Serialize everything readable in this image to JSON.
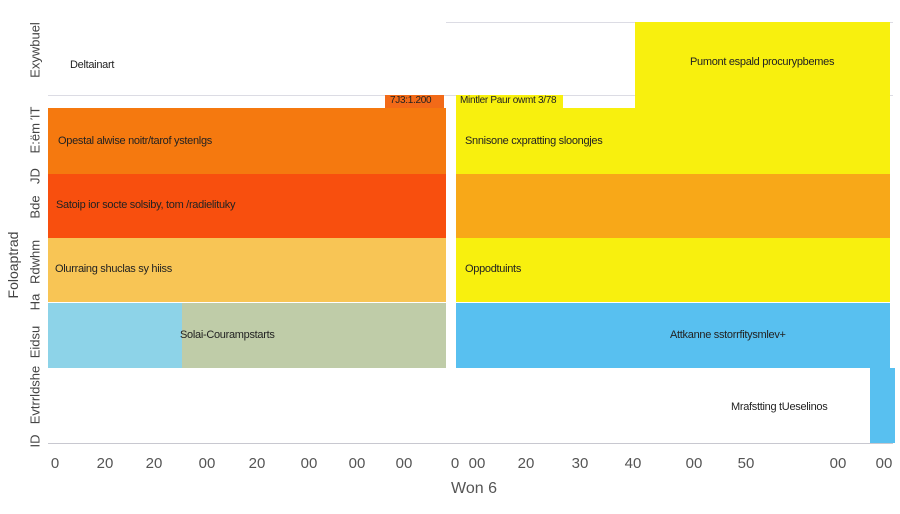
{
  "chart_data": {
    "type": "heatmap",
    "title": "",
    "xlabel": "Won 6",
    "ylabel": "Foloaptrad",
    "x_tick_labels": [
      "0",
      "20",
      "20",
      "00",
      "20",
      "00",
      "00",
      "00",
      "0",
      "00",
      "20",
      "30",
      "40",
      "00",
      "50",
      "00",
      "00"
    ],
    "y_tick_labels": [
      "Exywbuel",
      "E:ëm ΊΤ",
      "JD",
      "Bde",
      "Rdwhm",
      "Ha",
      "Eidsu",
      "Evtrrldshe",
      "ID"
    ],
    "cells": [
      {
        "label": "Deltainart",
        "color": "#ffffff"
      },
      {
        "label": "Pumont espald procurypbemes",
        "color": "#f8f00e"
      },
      {
        "label": "7J3:1.200",
        "color": "#f26a18"
      },
      {
        "label": "Mintler Paur owmt 3/78",
        "color": "#f8f00e"
      },
      {
        "label": "Opestal alwise noitr/tarof ystenlgs",
        "color": "#f5790f"
      },
      {
        "label": "Snnisone cxpratting sloongjes",
        "color": "#f8f00e"
      },
      {
        "label": "Satoip ior socte solsiby, tom /radielituky",
        "color": "#f84f0e"
      },
      {
        "label": "",
        "color": "#f8a818"
      },
      {
        "label": "Olurraing shuclas sy hiiss",
        "color": "#f8c555"
      },
      {
        "label": "Oppodtuints",
        "color": "#f8f00e"
      },
      {
        "label": "Solai-Courampstarts",
        "color": "#bfcca8"
      },
      {
        "label": "Attkanne sstorrfitysmlev+",
        "color": "#58c0f0"
      },
      {
        "label": "Mrafstting tUeselinos",
        "color": "#ffffff"
      }
    ],
    "colors": {
      "light_blue": "#8dd3e8",
      "blue": "#58c0f0"
    },
    "grid": true
  }
}
